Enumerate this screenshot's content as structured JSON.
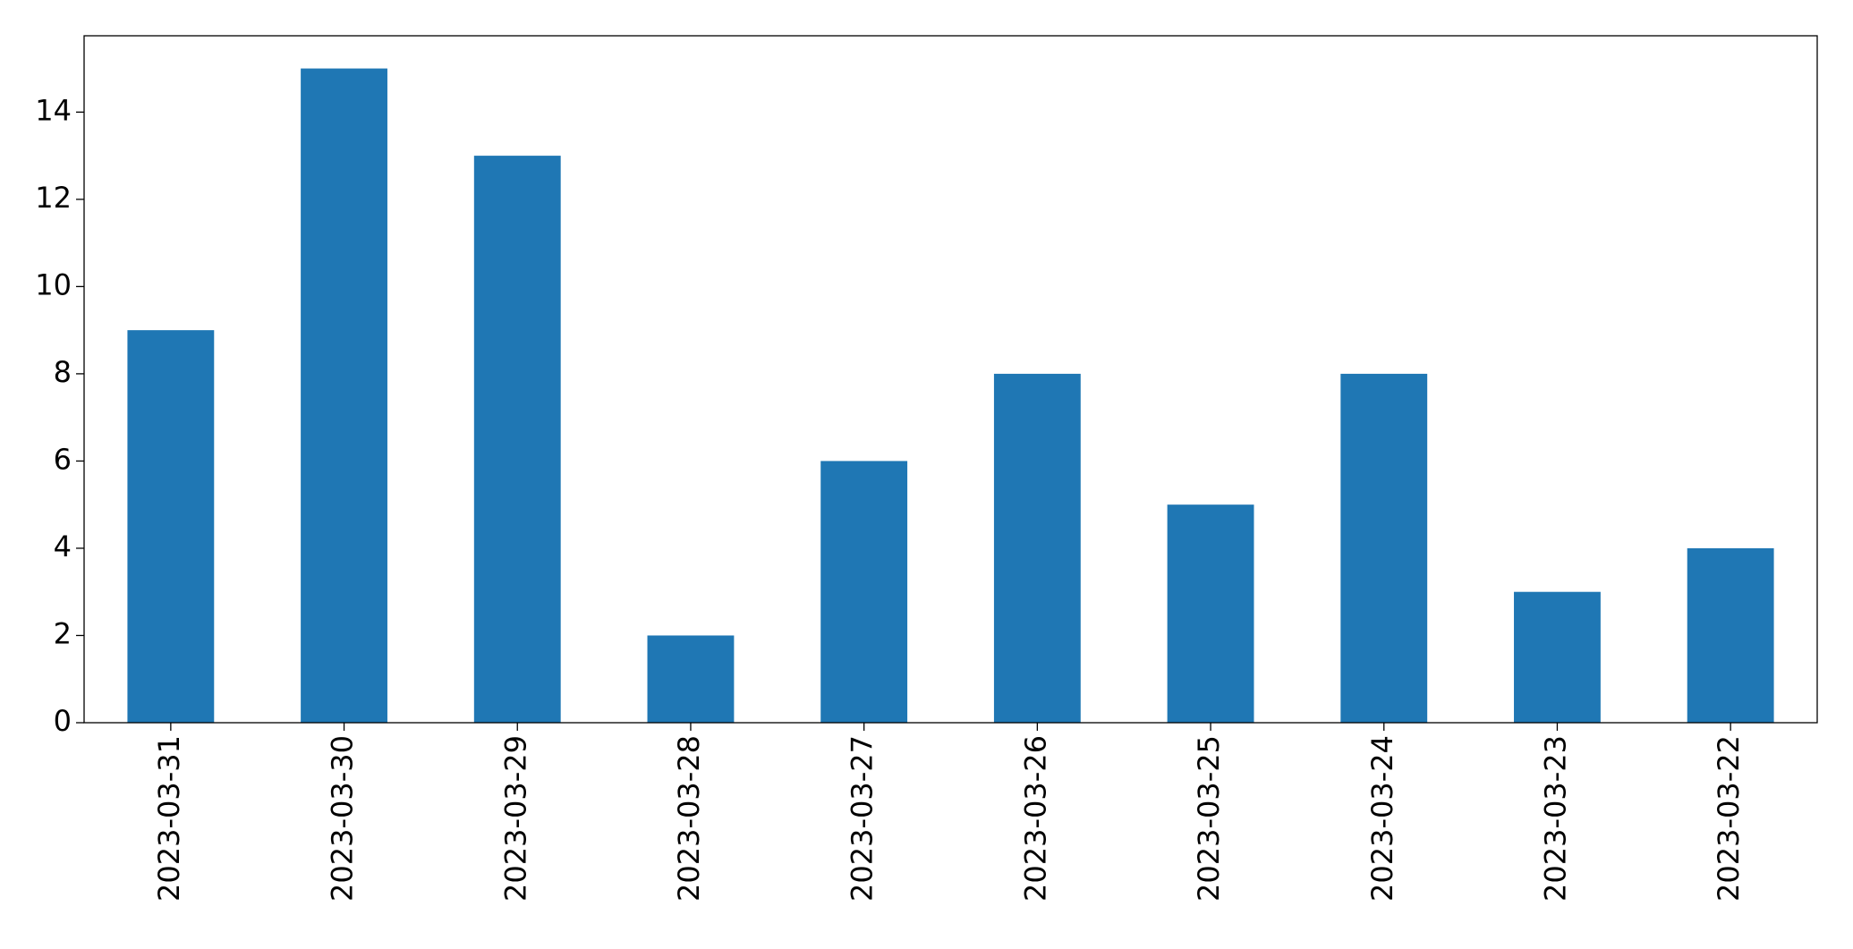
{
  "chart_data": {
    "type": "bar",
    "categories": [
      "2023-03-31",
      "2023-03-30",
      "2023-03-29",
      "2023-03-28",
      "2023-03-27",
      "2023-03-26",
      "2023-03-25",
      "2023-03-24",
      "2023-03-23",
      "2023-03-22"
    ],
    "values": [
      9,
      15,
      13,
      2,
      6,
      8,
      5,
      8,
      3,
      4
    ],
    "color": "#1f77b4",
    "ylim": [
      0,
      15.75
    ],
    "yticks": [
      0,
      2,
      4,
      6,
      8,
      10,
      12,
      14
    ],
    "grid": false
  }
}
